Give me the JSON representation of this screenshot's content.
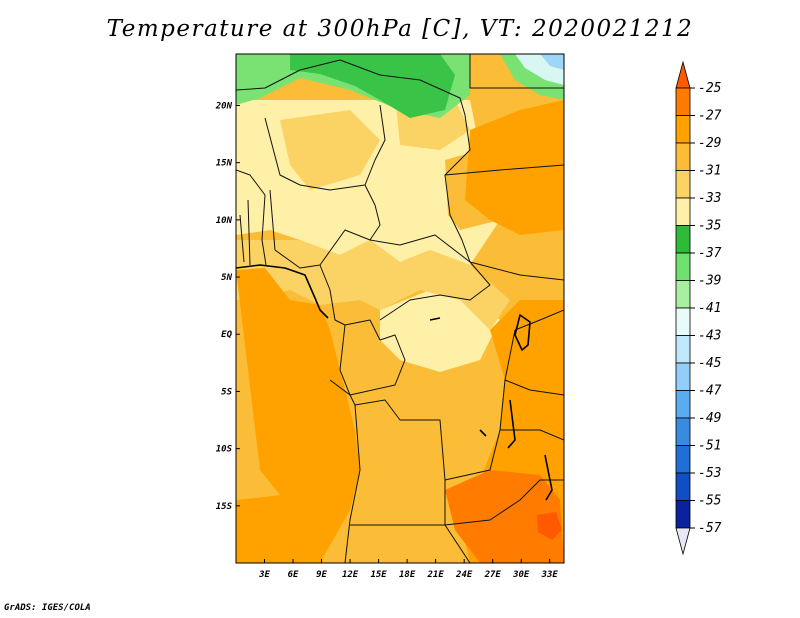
{
  "title": "Temperature at 300hPa [C], VT: 2020021212",
  "credit": "GrADS: IGES/COLA",
  "map": {
    "lon_range": [
      0,
      34.5
    ],
    "lat_range": [
      -20,
      24.5
    ],
    "lat_labels": [
      "20N",
      "15N",
      "10N",
      "5N",
      "EQ",
      "5S",
      "10S",
      "15S"
    ],
    "lon_labels": [
      "3E",
      "6E",
      "9E",
      "12E",
      "15E",
      "18E",
      "21E",
      "24E",
      "27E",
      "30E",
      "33E"
    ]
  },
  "colorbar": {
    "labels": [
      "-25",
      "-27",
      "-29",
      "-31",
      "-33",
      "-35",
      "-37",
      "-39",
      "-41",
      "-43",
      "-45",
      "-47",
      "-49",
      "-51",
      "-53",
      "-55",
      "-57"
    ],
    "colors": [
      "#ff5a00",
      "#ff7c00",
      "#ffa200",
      "#fbbd38",
      "#fbd364",
      "#fff0a8",
      "#2ebc38",
      "#6fe06f",
      "#a6f0a0",
      "#e6fbfa",
      "#bfe8fb",
      "#94cdf7",
      "#5aabef",
      "#3a8be0",
      "#1f6fd6",
      "#0f4ec4",
      "#0a22a0",
      "#0a0a78"
    ]
  },
  "field": {
    "colors": {
      "cold_green_dark": "#39c447",
      "cold_green": "#79e273",
      "pale_cyan": "#d8f7f2",
      "light_blue": "#9ed6f7",
      "yellow_pale": "#fff0a8",
      "yellow": "#fbd364",
      "orange_light": "#fbbd38",
      "orange": "#ffa200",
      "orange_dark": "#ff7c00"
    }
  }
}
